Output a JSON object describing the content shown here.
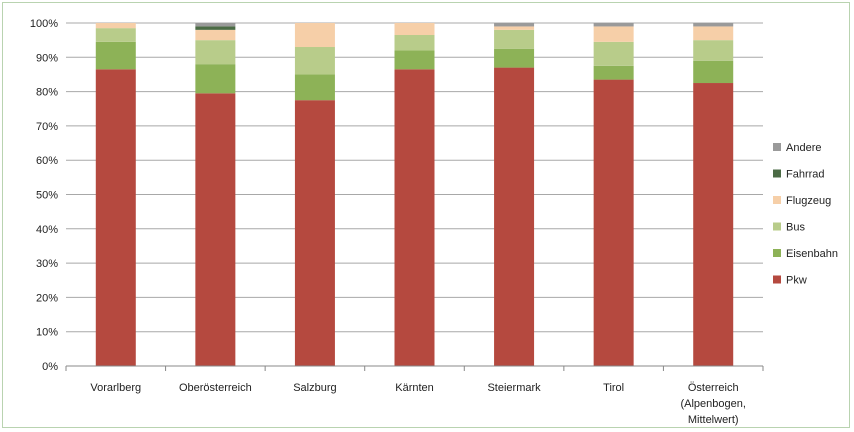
{
  "chart_data": {
    "type": "bar",
    "stacked": true,
    "title": "",
    "xlabel": "",
    "ylabel": "",
    "ylim": [
      0,
      100
    ],
    "y_ticks": [
      "0%",
      "10%",
      "20%",
      "30%",
      "40%",
      "50%",
      "60%",
      "70%",
      "80%",
      "90%",
      "100%"
    ],
    "grid": true,
    "legend_position": "right",
    "categories": [
      [
        "Vorarlberg"
      ],
      [
        "Oberösterreich"
      ],
      [
        "Salzburg"
      ],
      [
        "Kärnten"
      ],
      [
        "Steiermark"
      ],
      [
        "Tirol"
      ],
      [
        "Österreich",
        "(Alpenbogen,",
        "Mittelwert)"
      ]
    ],
    "series": [
      {
        "name": "Pkw",
        "color": "#b5493f",
        "values": [
          86.5,
          79.5,
          77.5,
          86.5,
          87,
          83.5,
          82.5
        ]
      },
      {
        "name": "Eisenbahn",
        "color": "#8db257",
        "values": [
          8,
          8.5,
          7.5,
          5.5,
          5.5,
          4,
          6.5
        ]
      },
      {
        "name": "Bus",
        "color": "#b8cc8a",
        "values": [
          4,
          7,
          8,
          4.5,
          5.5,
          7,
          6
        ]
      },
      {
        "name": "Flugzeug",
        "color": "#f6cfa8",
        "values": [
          1.5,
          3,
          7,
          3.5,
          1,
          4.5,
          4
        ]
      },
      {
        "name": "Fahrrad",
        "color": "#4b6b45",
        "values": [
          0,
          1,
          0,
          0,
          0,
          0,
          0
        ]
      },
      {
        "name": "Andere",
        "color": "#9a9a9a",
        "values": [
          0,
          1,
          0,
          0,
          1,
          1,
          1
        ]
      }
    ]
  }
}
